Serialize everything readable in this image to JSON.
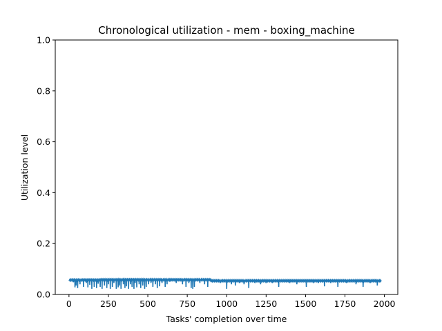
{
  "chart_data": {
    "type": "line",
    "title": "Chronological utilization - mem - boxing_machine",
    "xlabel": "Tasks' completion over time",
    "ylabel": "Utilization level",
    "xlim": [
      -87,
      2085
    ],
    "ylim": [
      0,
      1
    ],
    "xticks": [
      0,
      250,
      500,
      750,
      1000,
      1250,
      1500,
      1750,
      2000
    ],
    "yticks": [
      0.0,
      0.2,
      0.4,
      0.6,
      0.8,
      1.0
    ],
    "xtick_labels": [
      "0",
      "250",
      "500",
      "750",
      "1000",
      "1250",
      "1500",
      "1750",
      "2000"
    ],
    "ytick_labels": [
      "0.0",
      "0.2",
      "0.4",
      "0.6",
      "0.8",
      "1.0"
    ],
    "grid": false,
    "legend": "none",
    "series": [
      {
        "color": "#1f77b4",
        "baseline": 0.055,
        "x_range": [
          0,
          1980
        ],
        "baseline_variants": [
          {
            "from": 0,
            "to": 200,
            "value": 0.057
          },
          {
            "from": 200,
            "to": 900,
            "value": 0.058
          },
          {
            "from": 900,
            "to": 1980,
            "value": 0.054
          }
        ],
        "dips": [
          [
            28,
            0.048
          ],
          [
            38,
            0.028
          ],
          [
            45,
            0.035
          ],
          [
            55,
            0.025
          ],
          [
            70,
            0.04
          ],
          [
            92,
            0.03
          ],
          [
            110,
            0.045
          ],
          [
            120,
            0.028
          ],
          [
            132,
            0.038
          ],
          [
            145,
            0.022
          ],
          [
            160,
            0.03
          ],
          [
            175,
            0.025
          ],
          [
            185,
            0.042
          ],
          [
            198,
            0.03
          ],
          [
            210,
            0.022
          ],
          [
            225,
            0.035
          ],
          [
            240,
            0.025
          ],
          [
            250,
            0.04
          ],
          [
            262,
            0.022
          ],
          [
            275,
            0.03
          ],
          [
            285,
            0.045
          ],
          [
            300,
            0.022
          ],
          [
            312,
            0.028
          ],
          [
            320,
            0.035
          ],
          [
            330,
            0.022
          ],
          [
            345,
            0.04
          ],
          [
            355,
            0.025
          ],
          [
            365,
            0.032
          ],
          [
            378,
            0.022
          ],
          [
            390,
            0.04
          ],
          [
            400,
            0.03
          ],
          [
            412,
            0.022
          ],
          [
            420,
            0.045
          ],
          [
            430,
            0.028
          ],
          [
            445,
            0.04
          ],
          [
            455,
            0.025
          ],
          [
            468,
            0.035
          ],
          [
            480,
            0.022
          ],
          [
            490,
            0.03
          ],
          [
            505,
            0.04
          ],
          [
            520,
            0.045
          ],
          [
            532,
            0.03
          ],
          [
            548,
            0.04
          ],
          [
            560,
            0.025
          ],
          [
            575,
            0.032
          ],
          [
            590,
            0.045
          ],
          [
            610,
            0.03
          ],
          [
            622,
            0.04
          ],
          [
            640,
            0.05
          ],
          [
            680,
            0.045
          ],
          [
            720,
            0.04
          ],
          [
            742,
            0.03
          ],
          [
            760,
            0.045
          ],
          [
            775,
            0.025
          ],
          [
            785,
            0.022
          ],
          [
            795,
            0.03
          ],
          [
            830,
            0.045
          ],
          [
            860,
            0.04
          ],
          [
            880,
            0.03
          ],
          [
            960,
            0.045
          ],
          [
            1000,
            0.022
          ],
          [
            1030,
            0.04
          ],
          [
            1055,
            0.035
          ],
          [
            1080,
            0.045
          ],
          [
            1110,
            0.04
          ],
          [
            1140,
            0.025
          ],
          [
            1180,
            0.045
          ],
          [
            1215,
            0.04
          ],
          [
            1250,
            0.045
          ],
          [
            1290,
            0.045
          ],
          [
            1330,
            0.03
          ],
          [
            1400,
            0.045
          ],
          [
            1445,
            0.04
          ],
          [
            1505,
            0.03
          ],
          [
            1550,
            0.045
          ],
          [
            1580,
            0.045
          ],
          [
            1620,
            0.032
          ],
          [
            1660,
            0.045
          ],
          [
            1705,
            0.03
          ],
          [
            1760,
            0.045
          ],
          [
            1820,
            0.04
          ],
          [
            1865,
            0.03
          ],
          [
            1910,
            0.045
          ],
          [
            1955,
            0.035
          ]
        ]
      }
    ]
  }
}
